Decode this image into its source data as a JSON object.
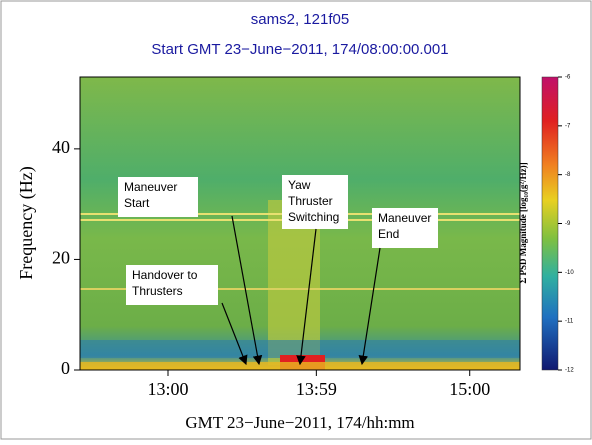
{
  "chart_data": {
    "type": "spectrogram",
    "title": "sams2, 121f05",
    "subtitle": "Start GMT 23−June−2011, 174/08:00:00.001",
    "ylabel": "Frequency (Hz)",
    "xlabel": "GMT 23−June−2011, 174/hh:mm",
    "ylim": [
      0,
      53
    ],
    "yticks": [
      0,
      20,
      40
    ],
    "xlim": [
      745,
      920
    ],
    "xticks": [
      {
        "value": 780,
        "label": "13:00"
      },
      {
        "value": 839,
        "label": "13:59"
      },
      {
        "value": 900,
        "label": "15:00"
      }
    ],
    "colorbar": {
      "label": "Σ PSD Magnitude [log₁₀(g²/Hz)]",
      "clim": [
        -12,
        -6
      ],
      "ticks": [
        -6,
        -7,
        -8,
        -9,
        -10,
        -11,
        -12
      ]
    },
    "annotations": [
      {
        "lines": [
          "Maneuver",
          "Start"
        ]
      },
      {
        "lines": [
          "Handover to",
          "Thrusters"
        ]
      },
      {
        "lines": [
          "Yaw",
          "Thruster",
          "Switching"
        ]
      },
      {
        "lines": [
          "Maneuver",
          "End"
        ]
      }
    ]
  }
}
